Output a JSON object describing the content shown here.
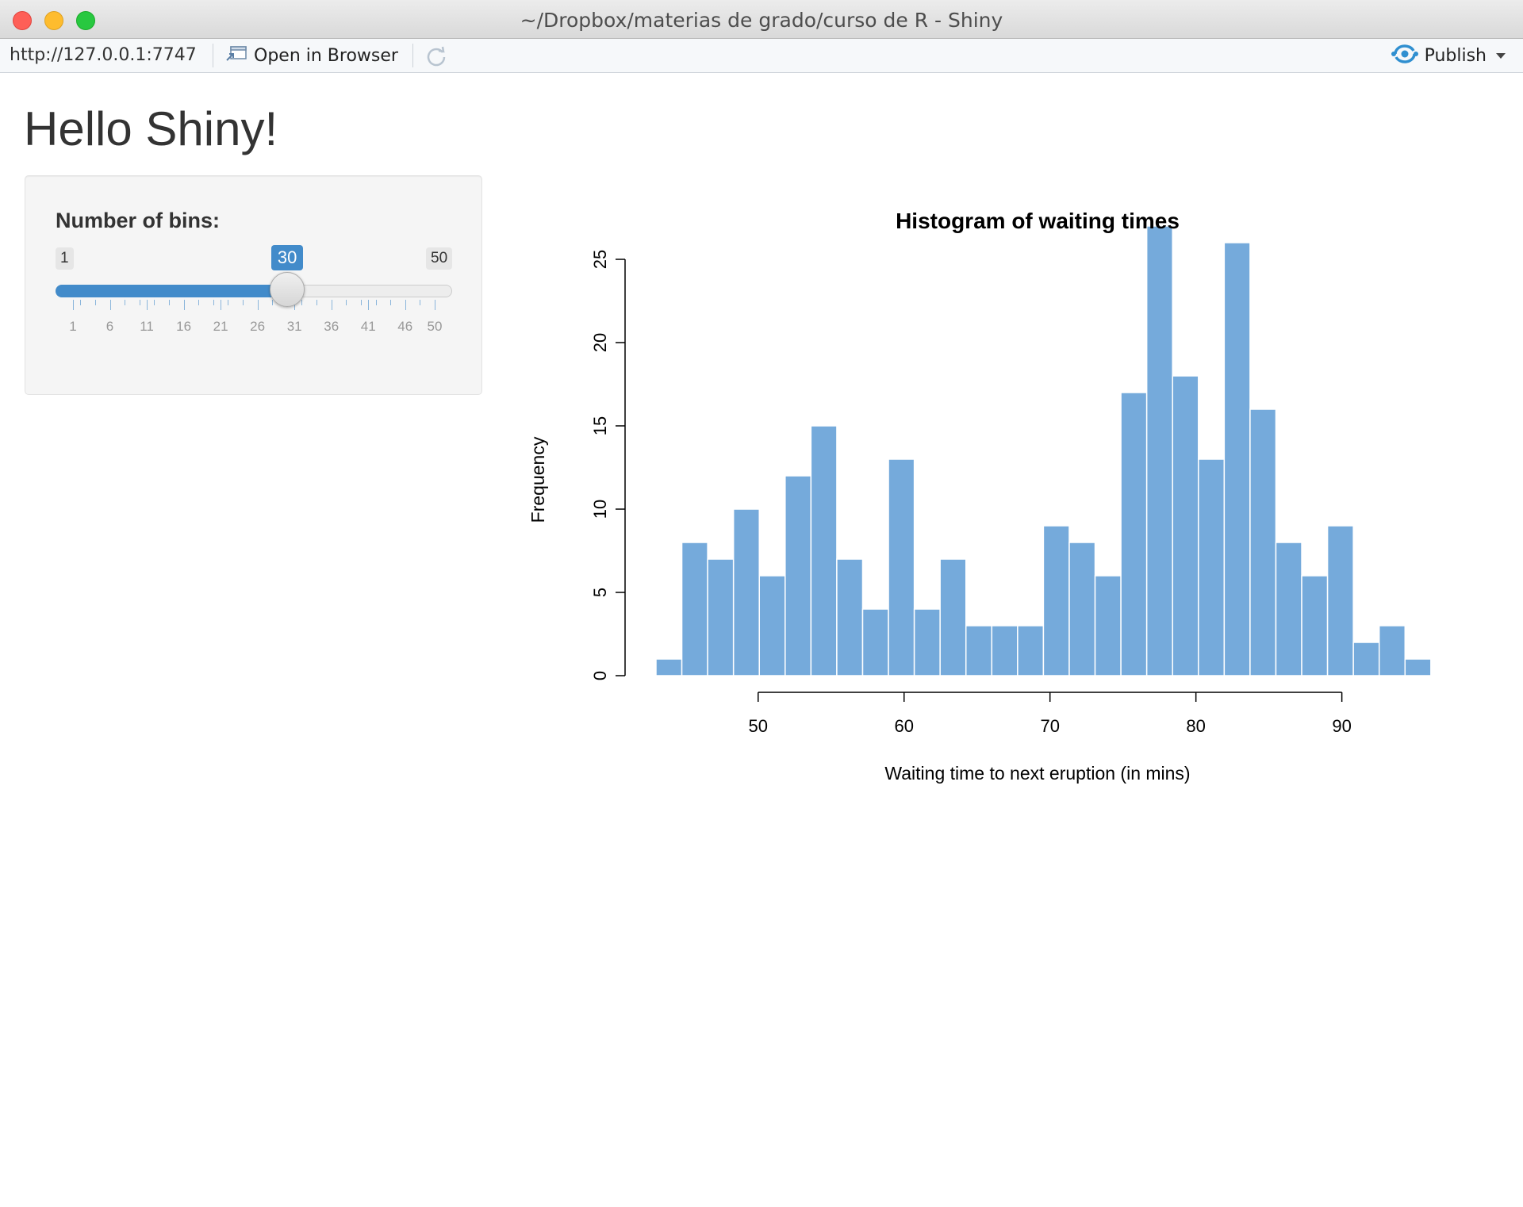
{
  "window": {
    "title": "~/Dropbox/materias de grado/curso de R - Shiny"
  },
  "toolbar": {
    "url": "http://127.0.0.1:7747",
    "open_in_browser": "Open in Browser",
    "publish": "Publish",
    "icons": [
      "open-browser-icon",
      "refresh-icon",
      "publish-icon",
      "chevron-down-icon"
    ]
  },
  "page": {
    "title": "Hello Shiny!"
  },
  "slider": {
    "label": "Number of bins:",
    "min": 1,
    "max": 50,
    "value": 30,
    "min_label": "1",
    "max_label": "50",
    "value_label": "30",
    "tick_labels": [
      "1",
      "6",
      "11",
      "16",
      "21",
      "26",
      "31",
      "36",
      "41",
      "46",
      "50"
    ],
    "accent": "#428bca"
  },
  "chart_data": {
    "type": "bar",
    "title": "Histogram of waiting times",
    "xlabel": "Waiting time to next eruption (in mins)",
    "ylabel": "Frequency",
    "bar_color": "#75AADB",
    "bin_start": 43,
    "bin_width": 1.77,
    "values": [
      1,
      8,
      7,
      10,
      6,
      12,
      15,
      7,
      4,
      13,
      4,
      7,
      3,
      3,
      3,
      9,
      8,
      6,
      17,
      27,
      18,
      13,
      26,
      16,
      8,
      6,
      9,
      2,
      3,
      1
    ],
    "xlim": [
      43,
      96
    ],
    "ylim": [
      0,
      27
    ],
    "x_ticks": [
      50,
      60,
      70,
      80,
      90
    ],
    "x_tick_labels": [
      "50",
      "60",
      "70",
      "80",
      "90"
    ],
    "y_ticks": [
      0,
      5,
      10,
      15,
      20,
      25
    ],
    "y_tick_labels": [
      "0",
      "5",
      "10",
      "15",
      "20",
      "25"
    ],
    "grid": false,
    "legend": "none"
  }
}
